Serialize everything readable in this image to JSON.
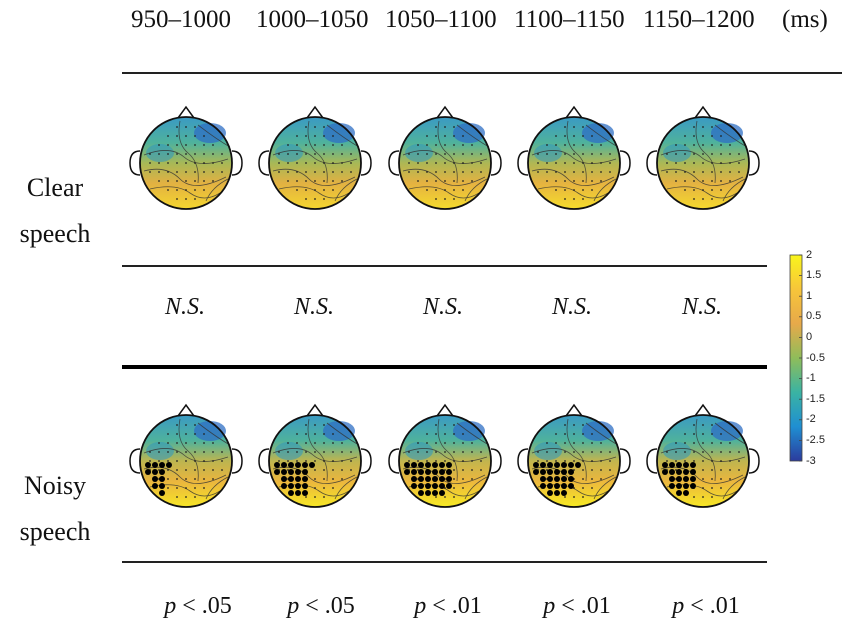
{
  "headers": {
    "windows": [
      "950–1000",
      "1000–1050",
      "1050–1100",
      "1100–1150",
      "1150–1200"
    ],
    "unit": "(ms)"
  },
  "rows": [
    {
      "label_line1": "Clear",
      "label_line2": "speech",
      "stats": [
        "N.S.",
        "N.S.",
        "N.S.",
        "N.S.",
        "N.S."
      ],
      "maps": [
        {
          "warm_level": 0.45,
          "sig_electrodes": 0
        },
        {
          "warm_level": 0.45,
          "sig_electrodes": 0
        },
        {
          "warm_level": 0.55,
          "sig_electrodes": 0
        },
        {
          "warm_level": 0.6,
          "sig_electrodes": 0
        },
        {
          "warm_level": 0.5,
          "sig_electrodes": 0
        }
      ]
    },
    {
      "label_line1": "Noisy",
      "label_line2": "speech",
      "stats": [
        {
          "p": "p",
          "rest": " < .05"
        },
        {
          "p": "p",
          "rest": " < .05"
        },
        {
          "p": "p",
          "rest": " < .01"
        },
        {
          "p": "p",
          "rest": " < .01"
        },
        {
          "p": "p",
          "rest": " < .01"
        }
      ],
      "maps": [
        {
          "warm_level": 0.8,
          "sig_electrodes": 12
        },
        {
          "warm_level": 0.85,
          "sig_electrodes": 22
        },
        {
          "warm_level": 0.9,
          "sig_electrodes": 30
        },
        {
          "warm_level": 0.9,
          "sig_electrodes": 26
        },
        {
          "warm_level": 0.85,
          "sig_electrodes": 20
        }
      ]
    }
  ],
  "colorbar": {
    "ticks": [
      "2",
      "1.5",
      "1",
      "0.5",
      "0",
      "-0.5",
      "-1",
      "-1.5",
      "-2",
      "-2.5",
      "-3"
    ],
    "colors": [
      "#f9f51c",
      "#f7c53a",
      "#e7a94a",
      "#8fbd5a",
      "#3ab3a3",
      "#1f8fd2",
      "#2b3b9d"
    ]
  }
}
